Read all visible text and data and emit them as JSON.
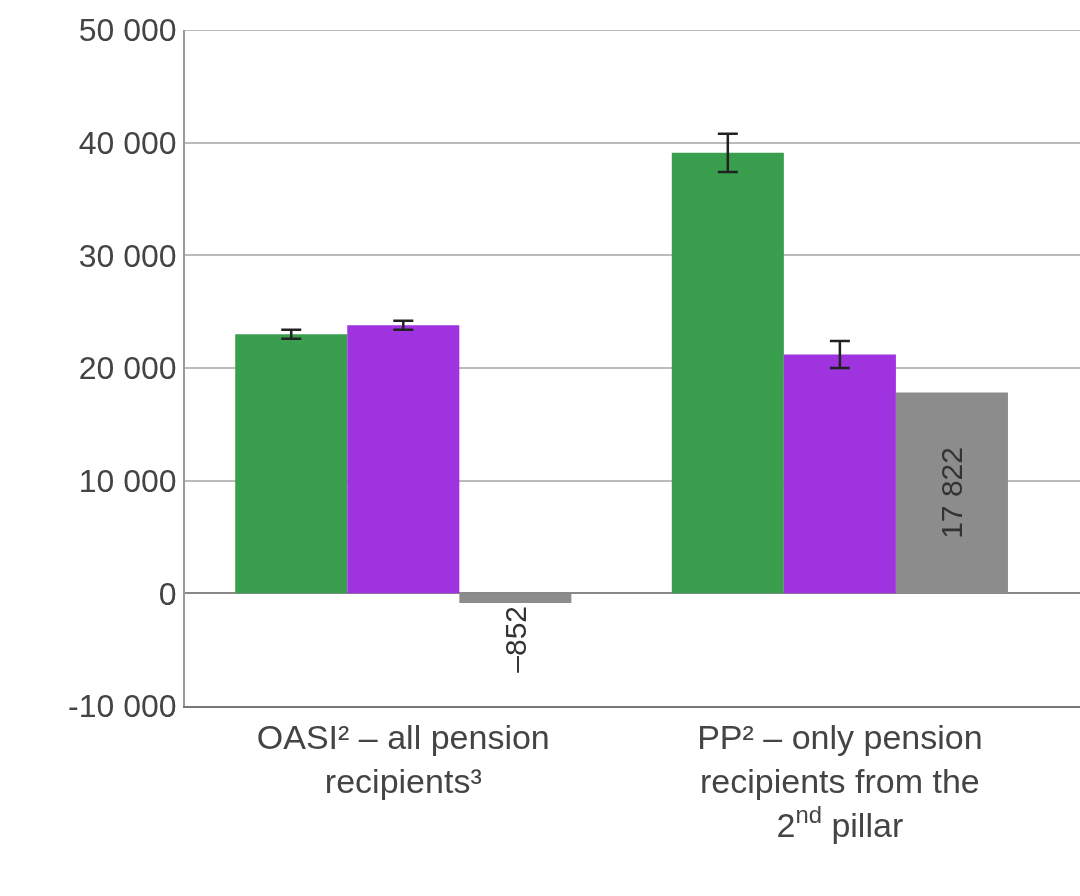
{
  "chart_data": {
    "type": "bar",
    "categories": [
      "OASI² – all pension recipients³",
      "PP² – only pension recipients from the 2$^{nd}$ pillar"
    ],
    "series": [
      {
        "color": "#3a9e4f",
        "values": [
          23000,
          39100
        ],
        "errors": [
          400,
          1700
        ]
      },
      {
        "color": "#a033e0",
        "values": [
          23800,
          21200
        ],
        "errors": [
          400,
          1200
        ]
      },
      {
        "color": "#8c8c8c",
        "values": [
          -852,
          17822
        ],
        "value_labels": [
          "–852",
          "17 822"
        ]
      }
    ],
    "ylim": [
      -10000,
      50000
    ],
    "yticks": [
      {
        "value": -10000,
        "label": "-10 000"
      },
      0,
      {
        "value": 10000,
        "label": "10 000"
      },
      {
        "value": 20000,
        "label": "20 000"
      },
      {
        "value": 30000,
        "label": "30 000"
      },
      {
        "value": 40000,
        "label": "40 000"
      },
      {
        "value": 50000,
        "label": "50 000"
      }
    ],
    "grid": "y"
  }
}
